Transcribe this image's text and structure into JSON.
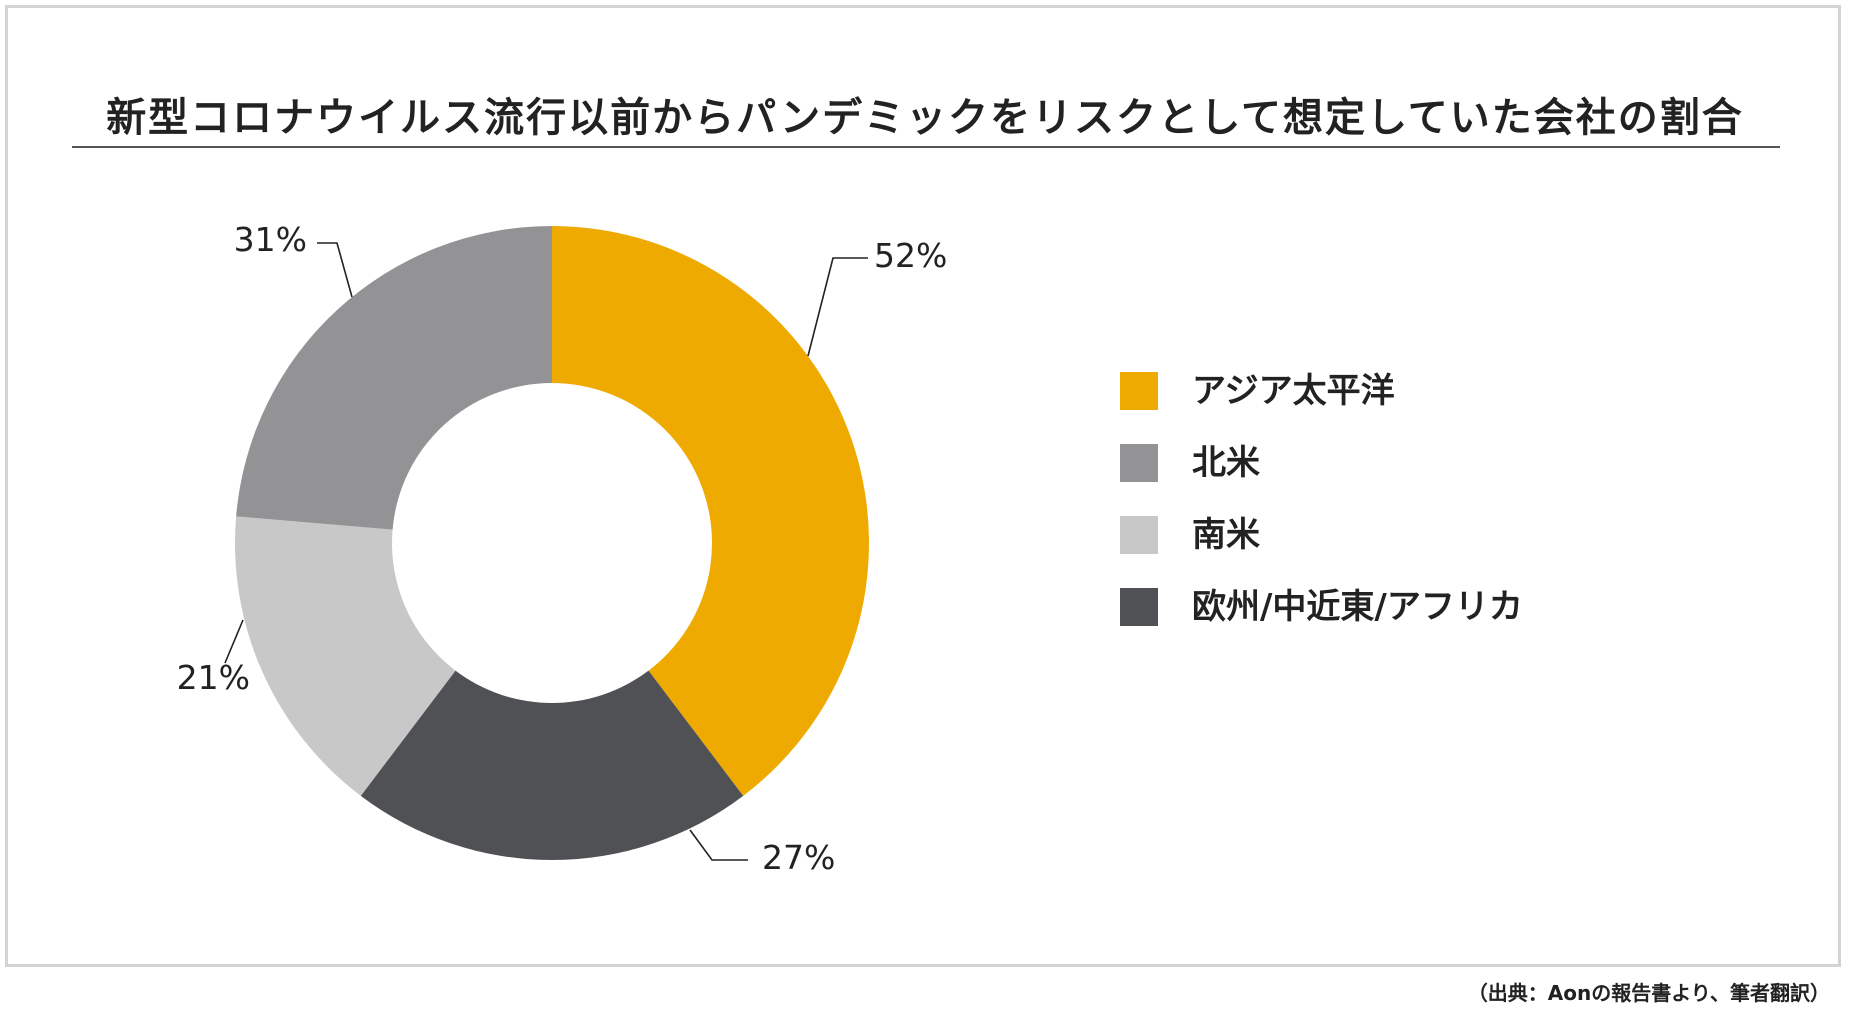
{
  "title": "新型コロナウイルス流行以前からパンデミックをリスクとして想定していた会社の割合",
  "source": "（出典：Aonの報告書より、筆者翻訳）",
  "chart_data": {
    "type": "pie",
    "title": "新型コロナウイルス流行以前からパンデミックをリスクとして想定していた会社の割合",
    "categories": [
      "アジア太平洋",
      "北米",
      "南米",
      "欧州/中近東/アフリカ"
    ],
    "values": [
      52,
      31,
      21,
      27
    ],
    "labels": [
      "52%",
      "31%",
      "21%",
      "27%"
    ],
    "colors": [
      "#eeaa00",
      "#939396",
      "#c8c8c8",
      "#505154"
    ],
    "donut": true,
    "legend_position": "right"
  }
}
